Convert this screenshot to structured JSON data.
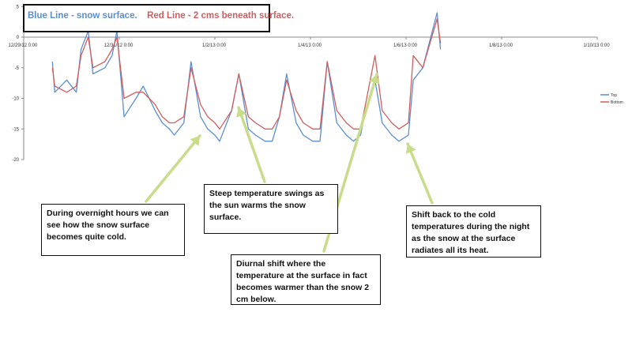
{
  "chart_data": {
    "type": "line",
    "title_blue": "Blue Line - snow surface.",
    "title_red": "Red Line - 2 cms beneath surface.",
    "x_ticks": [
      "12/29/12 0:00",
      "12/31/12 0:00",
      "1/2/13 0:00",
      "1/4/13 0:00",
      "1/6/13 0:00",
      "1/8/13 0:00",
      "1/10/13 0:00"
    ],
    "ylim": [
      -20,
      5
    ],
    "y_ticks": [
      5,
      0,
      -5,
      -10,
      -15,
      -20
    ],
    "grid": false,
    "legend_position": "right",
    "x_units": "days since 12/29/12 0:00",
    "series": [
      {
        "name": "Top",
        "color": "#5b8fd0",
        "x": [
          0.6,
          0.65,
          0.9,
          1.1,
          1.2,
          1.35,
          1.45,
          1.7,
          1.85,
          1.95,
          2.1,
          2.35,
          2.5,
          2.75,
          2.9,
          3.05,
          3.15,
          3.35,
          3.5,
          3.7,
          3.85,
          4.0,
          4.1,
          4.35,
          4.5,
          4.7,
          4.85,
          5.05,
          5.2,
          5.35,
          5.5,
          5.7,
          5.85,
          6.05,
          6.2,
          6.35,
          6.55,
          6.75,
          6.9,
          7.05,
          7.15,
          7.35,
          7.5,
          7.7,
          7.85,
          8.05,
          8.15,
          8.35,
          8.65,
          8.72
        ],
        "y": [
          -4,
          -9,
          -7,
          -9,
          -2,
          1,
          -6,
          -5,
          -3,
          1,
          -13,
          -10,
          -8,
          -12,
          -14,
          -15,
          -16,
          -14,
          -4,
          -13,
          -15,
          -16,
          -17,
          -12,
          -6,
          -15,
          -16,
          -17,
          -17,
          -13,
          -6,
          -14,
          -16,
          -17,
          -17,
          -4,
          -14,
          -16,
          -17,
          -16,
          -12,
          -7,
          -14,
          -16,
          -17,
          -16,
          -7,
          -5,
          4,
          -2
        ]
      },
      {
        "name": "Bottom",
        "color": "#d05e5e",
        "x": [
          0.6,
          0.65,
          0.9,
          1.1,
          1.2,
          1.35,
          1.45,
          1.7,
          1.85,
          1.95,
          2.1,
          2.35,
          2.5,
          2.75,
          2.9,
          3.05,
          3.15,
          3.35,
          3.5,
          3.7,
          3.85,
          4.0,
          4.1,
          4.35,
          4.5,
          4.7,
          4.85,
          5.05,
          5.2,
          5.35,
          5.5,
          5.7,
          5.85,
          6.05,
          6.2,
          6.35,
          6.55,
          6.75,
          6.9,
          7.05,
          7.15,
          7.35,
          7.5,
          7.7,
          7.85,
          8.05,
          8.15,
          8.35,
          8.65,
          8.72
        ],
        "y": [
          -5,
          -8,
          -9,
          -8,
          -3,
          0,
          -5,
          -4,
          -2,
          0,
          -10,
          -9,
          -9,
          -11,
          -13,
          -14,
          -14,
          -13,
          -5,
          -11,
          -13,
          -14,
          -15,
          -12,
          -6,
          -13,
          -14,
          -15,
          -15,
          -13,
          -7,
          -12,
          -14,
          -15,
          -15,
          -4,
          -12,
          -14,
          -15,
          -15,
          -11,
          -3,
          -12,
          -14,
          -15,
          -14,
          -3,
          -5,
          3,
          -1
        ]
      }
    ]
  },
  "callouts": {
    "overnight": "During overnight hours we can see how the snow surface becomes quite cold.",
    "steep": "Steep temperature swings as the sun warms the snow surface.",
    "diurnal": "Diurnal shift where the temperature at the surface in fact becomes warmer than the snow 2 cm below.",
    "shift_back": "Shift back to the cold temperatures during the night as the snow at the surface radiates all its heat."
  }
}
